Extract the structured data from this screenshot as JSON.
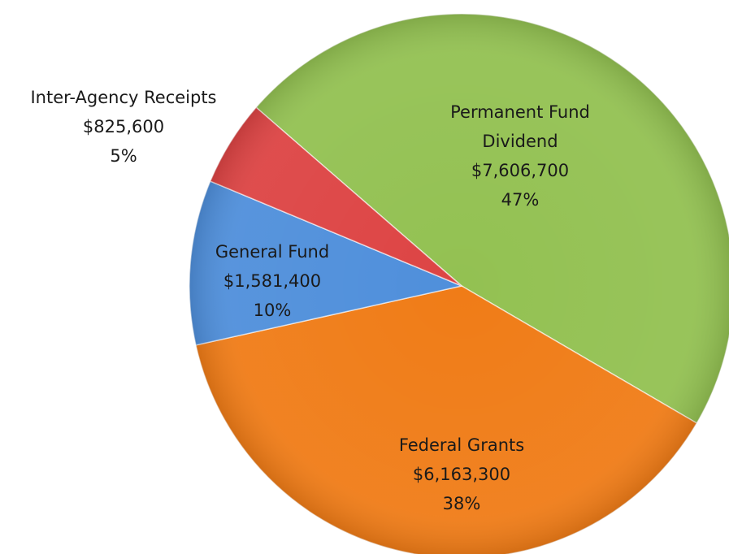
{
  "chart_data": {
    "type": "pie",
    "categories": [
      "Permanent Fund Dividend",
      "Federal Grants",
      "General Fund",
      "Inter-Agency Receipts"
    ],
    "values": [
      7606700,
      6163300,
      1581400,
      825600
    ],
    "value_labels": [
      "$7,606,700",
      "$6,163,300",
      "$1,581,400",
      "$825,600"
    ],
    "percent_labels": [
      "47%",
      "38%",
      "10%",
      "5%"
    ],
    "colors": [
      "#93c152",
      "#f07c17",
      "#4f8fdb",
      "#dd4444"
    ]
  }
}
